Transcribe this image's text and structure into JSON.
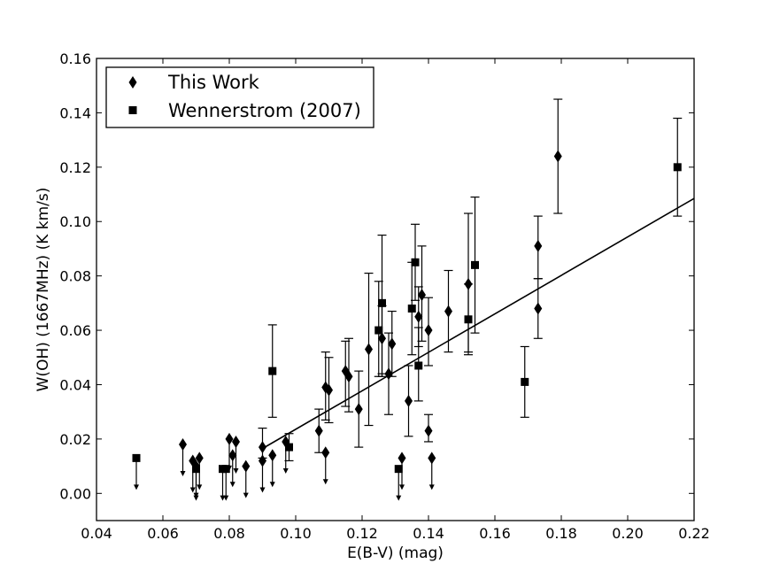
{
  "chart_data": {
    "type": "scatter",
    "xlabel": "E(B-V) (mag)",
    "ylabel": "W(OH) (1667MHz) (K km/s)",
    "xlim": [
      0.04,
      0.22
    ],
    "ylim": [
      -0.01,
      0.16
    ],
    "xticks": [
      "0.04",
      "0.06",
      "0.08",
      "0.10",
      "0.12",
      "0.14",
      "0.16",
      "0.18",
      "0.20",
      "0.22"
    ],
    "yticks": [
      "0.00",
      "0.02",
      "0.04",
      "0.06",
      "0.08",
      "0.10",
      "0.12",
      "0.14",
      "0.16"
    ],
    "legend_position": "top-left",
    "fit_line": {
      "x": [
        0.09,
        0.22
      ],
      "y": [
        0.0165,
        0.1085
      ]
    },
    "series": [
      {
        "name": "This Work",
        "marker": "diamond",
        "detections": [
          {
            "x": 0.09,
            "y": 0.017,
            "err_lo": 0.004,
            "err_hi": 0.007
          },
          {
            "x": 0.107,
            "y": 0.023,
            "err_lo": 0.008,
            "err_hi": 0.008
          },
          {
            "x": 0.109,
            "y": 0.039,
            "err_lo": 0.012,
            "err_hi": 0.013
          },
          {
            "x": 0.11,
            "y": 0.038,
            "err_lo": 0.012,
            "err_hi": 0.012
          },
          {
            "x": 0.115,
            "y": 0.045,
            "err_lo": 0.013,
            "err_hi": 0.011
          },
          {
            "x": 0.116,
            "y": 0.043,
            "err_lo": 0.013,
            "err_hi": 0.014
          },
          {
            "x": 0.119,
            "y": 0.031,
            "err_lo": 0.014,
            "err_hi": 0.014
          },
          {
            "x": 0.122,
            "y": 0.053,
            "err_lo": 0.028,
            "err_hi": 0.028
          },
          {
            "x": 0.126,
            "y": 0.057,
            "err_lo": 0.013,
            "err_hi": 0.012
          },
          {
            "x": 0.128,
            "y": 0.044,
            "err_lo": 0.015,
            "err_hi": 0.015
          },
          {
            "x": 0.129,
            "y": 0.055,
            "err_lo": 0.012,
            "err_hi": 0.012
          },
          {
            "x": 0.134,
            "y": 0.034,
            "err_lo": 0.013,
            "err_hi": 0.013
          },
          {
            "x": 0.137,
            "y": 0.065,
            "err_lo": 0.011,
            "err_hi": 0.011
          },
          {
            "x": 0.138,
            "y": 0.073,
            "err_lo": 0.017,
            "err_hi": 0.018
          },
          {
            "x": 0.14,
            "y": 0.06,
            "err_lo": 0.013,
            "err_hi": 0.012
          },
          {
            "x": 0.14,
            "y": 0.023,
            "err_lo": 0.004,
            "err_hi": 0.006
          },
          {
            "x": 0.146,
            "y": 0.067,
            "err_lo": 0.015,
            "err_hi": 0.015
          },
          {
            "x": 0.152,
            "y": 0.077,
            "err_lo": 0.025,
            "err_hi": 0.026
          },
          {
            "x": 0.173,
            "y": 0.091,
            "err_lo": 0.012,
            "err_hi": 0.011
          },
          {
            "x": 0.173,
            "y": 0.068,
            "err_lo": 0.011,
            "err_hi": 0.011
          },
          {
            "x": 0.179,
            "y": 0.124,
            "err_lo": 0.021,
            "err_hi": 0.021
          }
        ],
        "upper_limits": [
          {
            "x": 0.066,
            "y": 0.018
          },
          {
            "x": 0.069,
            "y": 0.012
          },
          {
            "x": 0.07,
            "y": 0.01
          },
          {
            "x": 0.071,
            "y": 0.013
          },
          {
            "x": 0.08,
            "y": 0.02
          },
          {
            "x": 0.081,
            "y": 0.014
          },
          {
            "x": 0.082,
            "y": 0.019
          },
          {
            "x": 0.085,
            "y": 0.01
          },
          {
            "x": 0.09,
            "y": 0.012
          },
          {
            "x": 0.093,
            "y": 0.014
          },
          {
            "x": 0.097,
            "y": 0.019
          },
          {
            "x": 0.109,
            "y": 0.015
          },
          {
            "x": 0.132,
            "y": 0.013
          },
          {
            "x": 0.141,
            "y": 0.013
          }
        ]
      },
      {
        "name": "Wennerstrom (2007)",
        "marker": "square",
        "detections": [
          {
            "x": 0.093,
            "y": 0.045,
            "err_lo": 0.017,
            "err_hi": 0.017
          },
          {
            "x": 0.098,
            "y": 0.017,
            "err_lo": 0.005,
            "err_hi": 0.005
          },
          {
            "x": 0.125,
            "y": 0.06,
            "err_lo": 0.017,
            "err_hi": 0.018
          },
          {
            "x": 0.126,
            "y": 0.07,
            "err_lo": 0.027,
            "err_hi": 0.025
          },
          {
            "x": 0.135,
            "y": 0.068,
            "err_lo": 0.017,
            "err_hi": 0.017
          },
          {
            "x": 0.136,
            "y": 0.085,
            "err_lo": 0.014,
            "err_hi": 0.014
          },
          {
            "x": 0.137,
            "y": 0.047,
            "err_lo": 0.013,
            "err_hi": 0.014
          },
          {
            "x": 0.152,
            "y": 0.064,
            "err_lo": 0.013,
            "err_hi": 0.013
          },
          {
            "x": 0.154,
            "y": 0.084,
            "err_lo": 0.025,
            "err_hi": 0.025
          },
          {
            "x": 0.169,
            "y": 0.041,
            "err_lo": 0.013,
            "err_hi": 0.013
          },
          {
            "x": 0.215,
            "y": 0.12,
            "err_lo": 0.018,
            "err_hi": 0.018
          }
        ],
        "upper_limits": [
          {
            "x": 0.052,
            "y": 0.013
          },
          {
            "x": 0.07,
            "y": 0.009
          },
          {
            "x": 0.078,
            "y": 0.009
          },
          {
            "x": 0.079,
            "y": 0.009
          },
          {
            "x": 0.131,
            "y": 0.009
          }
        ]
      }
    ]
  }
}
